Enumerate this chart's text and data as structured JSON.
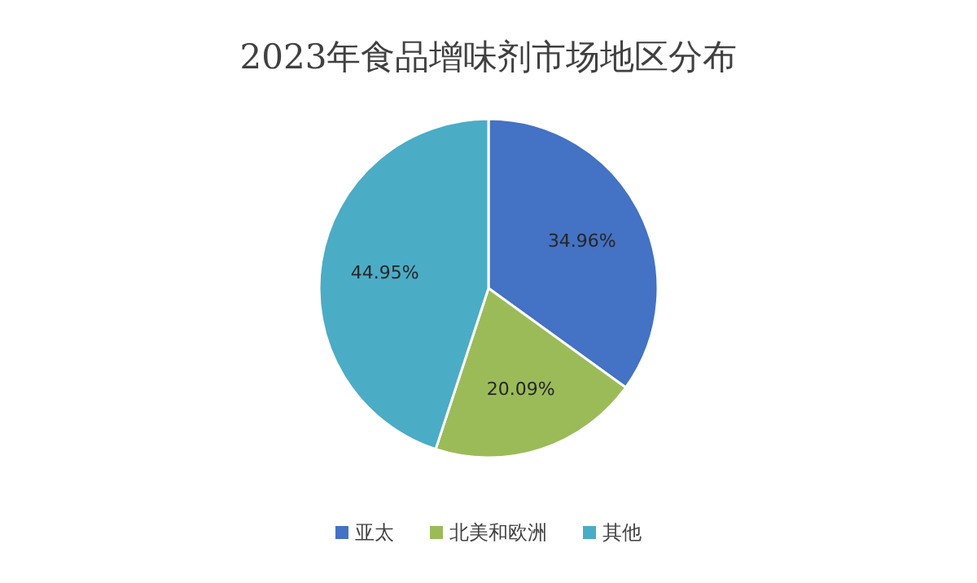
{
  "chart_data": {
    "type": "pie",
    "title": "2023年食品增味剂市场地区分布",
    "categories": [
      "亚太",
      "北美和欧洲",
      "其他"
    ],
    "values": [
      34.96,
      20.09,
      44.95
    ],
    "value_labels": [
      "34.96%",
      "20.09%",
      "44.95%"
    ],
    "colors": [
      "#4472c4",
      "#9bbb59",
      "#4bacc6"
    ],
    "legend": "bottom"
  }
}
